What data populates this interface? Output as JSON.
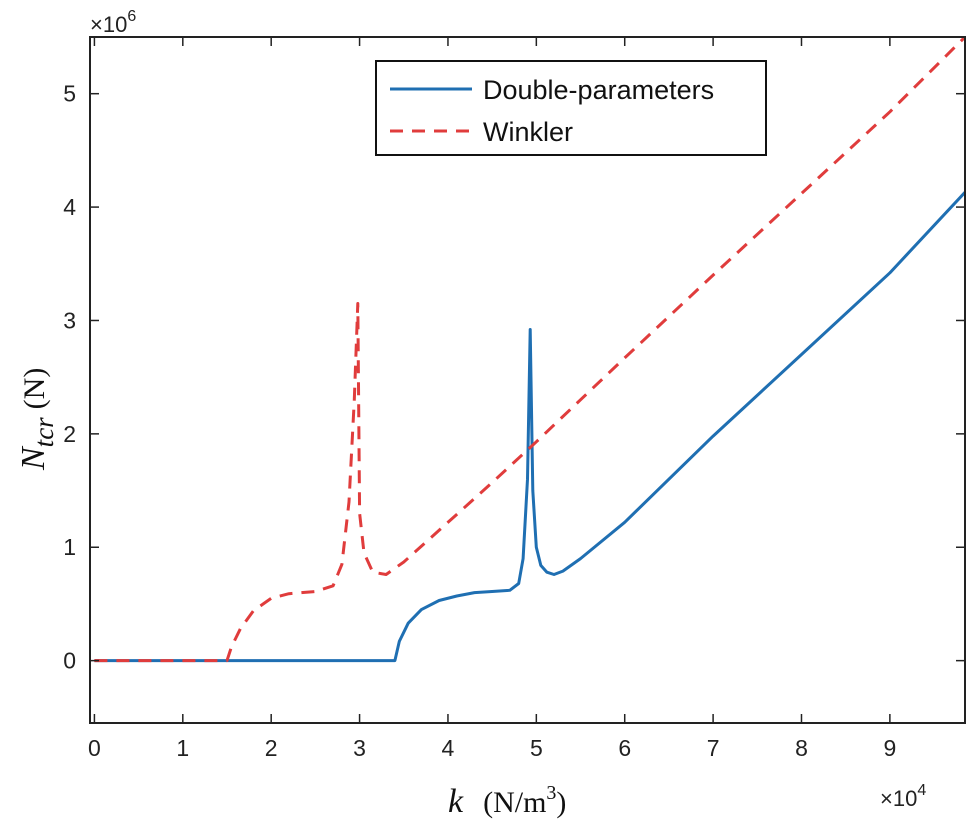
{
  "chart_data": {
    "type": "line",
    "x_multiplier_label": "×10",
    "x_multiplier_exp": "4",
    "y_multiplier_label": "×10",
    "y_multiplier_exp": "6",
    "xlim": [
      -0.05,
      9.85
    ],
    "ylim": [
      -0.55,
      5.5
    ],
    "x_ticks": [
      0,
      1,
      2,
      3,
      4,
      5,
      6,
      7,
      8,
      9
    ],
    "y_ticks": [
      0,
      1,
      2,
      3,
      4,
      5
    ],
    "xlabel": {
      "main": "k",
      "unit_prefix": "(N/m",
      "unit_exp": "3",
      "unit_suffix": ")"
    },
    "ylabel": {
      "main": "N",
      "sub": "tcr",
      "unit": "(N)"
    },
    "grid": false,
    "legend_position": "top-center",
    "series": [
      {
        "name": "Double-parameters",
        "color": "#1f6fb2",
        "dash": "solid",
        "x": [
          0,
          1,
          2,
          3,
          3.4,
          3.45,
          3.55,
          3.7,
          3.9,
          4.1,
          4.3,
          4.5,
          4.7,
          4.8,
          4.85,
          4.9,
          4.93,
          4.96,
          5.0,
          5.05,
          5.12,
          5.2,
          5.3,
          5.5,
          6.0,
          7.0,
          8.0,
          9.0,
          9.85
        ],
        "y": [
          0,
          0,
          0,
          0,
          0,
          0.17,
          0.33,
          0.45,
          0.53,
          0.57,
          0.6,
          0.61,
          0.62,
          0.68,
          0.9,
          1.6,
          2.92,
          1.5,
          1.0,
          0.84,
          0.78,
          0.76,
          0.79,
          0.9,
          1.22,
          1.98,
          2.7,
          3.42,
          4.13
        ]
      },
      {
        "name": "Winkler",
        "color": "#e03c3c",
        "dash": "dashed",
        "x": [
          0,
          1,
          1.5,
          1.55,
          1.65,
          1.8,
          2.0,
          2.2,
          2.5,
          2.7,
          2.8,
          2.88,
          2.94,
          2.98,
          3.0,
          3.05,
          3.15,
          3.3,
          3.5,
          4.0,
          4.5,
          5.0,
          5.5,
          6.0,
          7.0,
          8.0,
          9.0,
          9.85
        ],
        "y": [
          0,
          0,
          0,
          0.12,
          0.28,
          0.44,
          0.55,
          0.59,
          0.61,
          0.66,
          0.85,
          1.4,
          2.3,
          3.15,
          1.3,
          0.95,
          0.78,
          0.76,
          0.87,
          1.22,
          1.57,
          1.93,
          2.3,
          2.67,
          3.4,
          4.12,
          4.84,
          5.5
        ]
      }
    ]
  }
}
